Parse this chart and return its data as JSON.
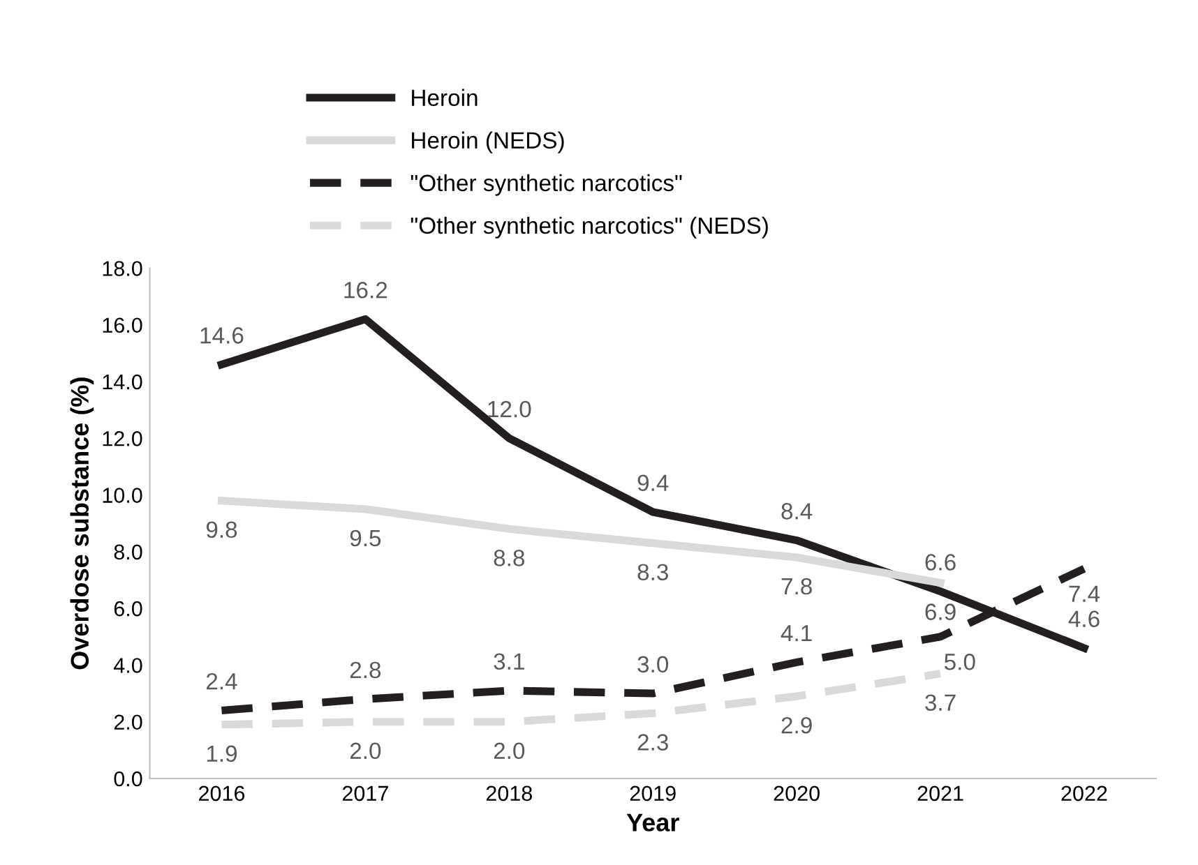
{
  "chart_data": {
    "type": "line",
    "xlabel": "Year",
    "ylabel": "Overdose substance (%)",
    "categories": [
      "2016",
      "2017",
      "2018",
      "2019",
      "2020",
      "2021",
      "2022"
    ],
    "series": [
      {
        "name": "Heroin",
        "color": "#231f20",
        "line_style": "solid",
        "values": [
          14.6,
          16.2,
          12.0,
          9.4,
          8.4,
          6.6,
          4.6
        ],
        "value_labels": [
          "14.6",
          "16.2",
          "12.0",
          "9.4",
          "8.4",
          "6.6",
          "4.6"
        ]
      },
      {
        "name": "Heroin (NEDS)",
        "color": "#d9d9d9",
        "line_style": "solid",
        "values": [
          9.8,
          9.5,
          8.8,
          8.3,
          7.8,
          6.9,
          null
        ],
        "value_labels": [
          "9.8",
          "9.5",
          "8.8",
          "8.3",
          "7.8",
          "6.9",
          null
        ]
      },
      {
        "name": "\"Other synthetic narcotics\"",
        "color": "#231f20",
        "line_style": "dashed",
        "values": [
          2.4,
          2.8,
          3.1,
          3.0,
          4.1,
          5.0,
          7.4
        ],
        "value_labels": [
          "2.4",
          "2.8",
          "3.1",
          "3.0",
          "4.1",
          "5.0",
          "7.4"
        ]
      },
      {
        "name": "\"Other synthetic narcotics\" (NEDS)",
        "color": "#d9d9d9",
        "line_style": "dashed",
        "values": [
          1.9,
          2.0,
          2.0,
          2.3,
          2.9,
          3.7,
          null
        ],
        "value_labels": [
          "1.9",
          "2.0",
          "2.0",
          "2.3",
          "2.9",
          "3.7",
          null
        ]
      }
    ],
    "ylim": [
      0,
      18
    ],
    "yticks": [
      {
        "value": 0,
        "label": "0.0"
      },
      {
        "value": 2,
        "label": "2.0"
      },
      {
        "value": 4,
        "label": "4.0"
      },
      {
        "value": 6,
        "label": "6.0"
      },
      {
        "value": 8,
        "label": "8.0"
      },
      {
        "value": 10,
        "label": "10.0"
      },
      {
        "value": 12,
        "label": "12.0"
      },
      {
        "value": 14,
        "label": "14.0"
      },
      {
        "value": 16,
        "label": "16.0"
      },
      {
        "value": 18,
        "label": "18.0"
      }
    ],
    "legend": "top",
    "grid": false,
    "marker": "none"
  }
}
